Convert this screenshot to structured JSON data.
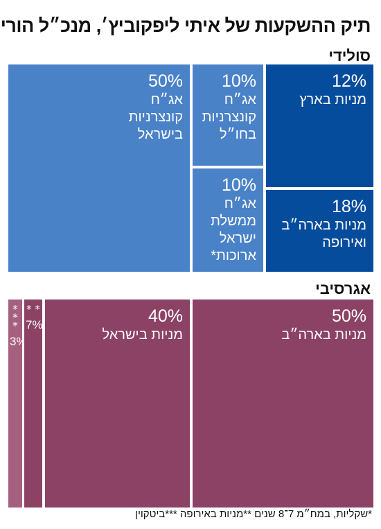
{
  "title": "תיק ההשקעות של איתי ליפקוביץ׳, מנכ״ל הורייזן",
  "sections": {
    "solid": "סולידי",
    "aggressive": "אגרסיבי"
  },
  "footnote": "*שקליות, במח״מ 7־8 שנים  **מניות באירופה  ***ביטקוין",
  "colors": {
    "solid_light": "#4a82c8",
    "solid_dark": "#064c9c",
    "aggressive": "#8c4265",
    "aggressive_light": "#a6607f"
  },
  "chart_data": [
    {
      "type": "treemap",
      "group": "סולידי",
      "items": [
        {
          "value": 12,
          "pct": "12%",
          "label": "מניות בארץ"
        },
        {
          "value": 18,
          "pct": "18%",
          "label": "מניות בארה״ב\nואירופה"
        },
        {
          "value": 10,
          "pct": "10%",
          "label": "אג״ח\nקונצרניות\nבחו״ל"
        },
        {
          "value": 10,
          "pct": "10%",
          "label": "אג״ח\nממשלת\nישראל\nארוכות*"
        },
        {
          "value": 50,
          "pct": "50%",
          "label": "אג״ח\nקונצרניות\nבישראל"
        }
      ]
    },
    {
      "type": "treemap",
      "group": "אגרסיבי",
      "items": [
        {
          "value": 50,
          "pct": "50%",
          "label": "מניות בארה״ב"
        },
        {
          "value": 40,
          "pct": "40%",
          "label": "מניות בישראל"
        },
        {
          "value": 7,
          "pct": "7%",
          "marker": "* *"
        },
        {
          "value": 3,
          "pct": "3%",
          "marker": "* *\n*"
        }
      ]
    }
  ]
}
